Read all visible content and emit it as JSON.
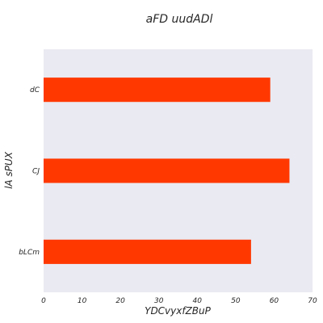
{
  "chart_data": {
    "type": "bar",
    "orientation": "horizontal",
    "title": "aFD uudADl",
    "xlabel": "YDCvyxfZBuP",
    "ylabel": "lA sPUX",
    "categories": [
      "dC",
      "CJ",
      "bLCm"
    ],
    "values": [
      59,
      64,
      54
    ],
    "xlim": [
      0,
      70
    ],
    "xticks": [
      0,
      10,
      20,
      30,
      40,
      50,
      60,
      70
    ],
    "grid": false,
    "bar_color": "#ff3800",
    "plot_background": "#eaeaf2"
  }
}
